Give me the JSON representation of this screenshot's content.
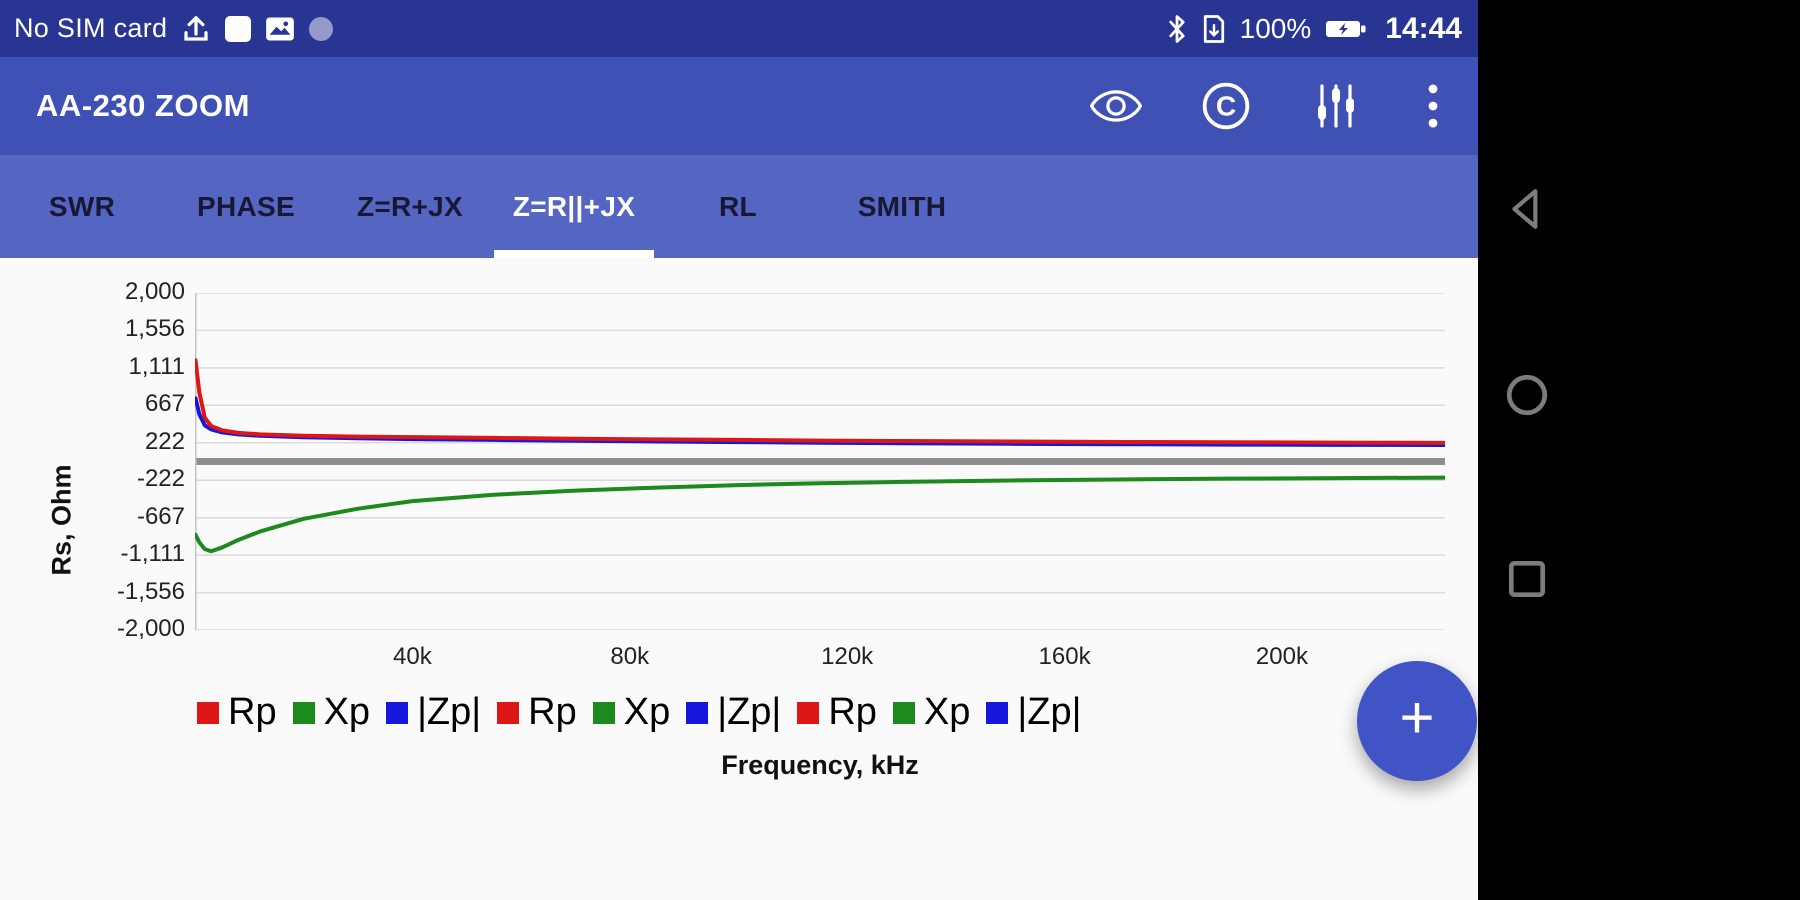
{
  "status_bar": {
    "carrier": "No SIM card",
    "battery_percent": "100%",
    "time": "14:44"
  },
  "app_bar": {
    "title": "AA-230 ZOOM"
  },
  "tabs": [
    {
      "label": "SWR",
      "selected": false
    },
    {
      "label": "PHASE",
      "selected": false
    },
    {
      "label": "Z=R+JX",
      "selected": false
    },
    {
      "label": "Z=R||+JX",
      "selected": true
    },
    {
      "label": "RL",
      "selected": false
    },
    {
      "label": "SMITH",
      "selected": false
    }
  ],
  "chart_data": {
    "type": "line",
    "title": "",
    "xlabel": "Frequency, kHz",
    "ylabel": "Rs, Ohm",
    "xlim": [
      0,
      230000
    ],
    "ylim": [
      -2000,
      2000
    ],
    "grid": "horizontal",
    "grid_color": "#dadada",
    "zero_line": {
      "value": 0,
      "color": "#8e8e8e",
      "width": 7
    },
    "x_ticks": [
      {
        "value": 40000,
        "label": "40k"
      },
      {
        "value": 80000,
        "label": "80k"
      },
      {
        "value": 120000,
        "label": "120k"
      },
      {
        "value": 160000,
        "label": "160k"
      },
      {
        "value": 200000,
        "label": "200k"
      }
    ],
    "y_ticks": [
      {
        "value": 2000,
        "label": "2,000"
      },
      {
        "value": 1556,
        "label": "1,556"
      },
      {
        "value": 1111,
        "label": "1,111"
      },
      {
        "value": 667,
        "label": "667"
      },
      {
        "value": 222,
        "label": "222"
      },
      {
        "value": -222,
        "label": "-222"
      },
      {
        "value": -667,
        "label": "-667"
      },
      {
        "value": -1111,
        "label": "-1,111"
      },
      {
        "value": -1556,
        "label": "-1,556"
      },
      {
        "value": -2000,
        "label": "-2,000"
      }
    ],
    "series": [
      {
        "name": "Rp",
        "color": "#dd1616",
        "x": [
          100,
          800,
          1800,
          3000,
          5000,
          8000,
          12000,
          20000,
          30000,
          40000,
          55000,
          70000,
          85000,
          100000,
          115000,
          130000,
          150000,
          170000,
          190000,
          210000,
          230000
        ],
        "y": [
          1200,
          820,
          520,
          420,
          370,
          340,
          322,
          305,
          295,
          289,
          280,
          270,
          262,
          256,
          248,
          243,
          237,
          232,
          228,
          224,
          221
        ]
      },
      {
        "name": "Xp",
        "color": "#1d8a1d",
        "x": [
          100,
          800,
          1800,
          3000,
          5000,
          8000,
          12000,
          20000,
          30000,
          40000,
          55000,
          70000,
          85000,
          100000,
          115000,
          130000,
          150000,
          170000,
          190000,
          210000,
          230000
        ],
        "y": [
          -870,
          -960,
          -1040,
          -1065,
          -1020,
          -930,
          -830,
          -680,
          -560,
          -470,
          -395,
          -345,
          -310,
          -280,
          -258,
          -242,
          -225,
          -213,
          -204,
          -197,
          -191
        ]
      },
      {
        "name": "|Zp|",
        "color": "#1616dd",
        "x": [
          100,
          800,
          1800,
          3000,
          5000,
          8000,
          12000,
          20000,
          30000,
          40000,
          55000,
          70000,
          85000,
          100000,
          115000,
          130000,
          150000,
          170000,
          190000,
          210000,
          230000
        ],
        "y": [
          750,
          560,
          430,
          380,
          345,
          322,
          305,
          288,
          276,
          266,
          256,
          246,
          238,
          230,
          223,
          217,
          210,
          205,
          201,
          198,
          196
        ]
      }
    ],
    "legend": [
      {
        "label": "Rp",
        "color": "#dd1616"
      },
      {
        "label": "Xp",
        "color": "#1d8a1d"
      },
      {
        "label": "|Zp|",
        "color": "#1616dd"
      },
      {
        "label": "Rp",
        "color": "#dd1616"
      },
      {
        "label": "Xp",
        "color": "#1d8a1d"
      },
      {
        "label": "|Zp|",
        "color": "#1616dd"
      },
      {
        "label": "Rp",
        "color": "#dd1616"
      },
      {
        "label": "Xp",
        "color": "#1d8a1d"
      },
      {
        "label": "|Zp|",
        "color": "#1616dd"
      }
    ],
    "legend_position": "bottom"
  },
  "fab": {
    "label": "+"
  },
  "colors": {
    "status_bar": "#283593",
    "app_bar": "#3f51b5",
    "tab_bar": "#5565c2",
    "fab": "#4154c6",
    "content_bg": "#fafafa"
  }
}
